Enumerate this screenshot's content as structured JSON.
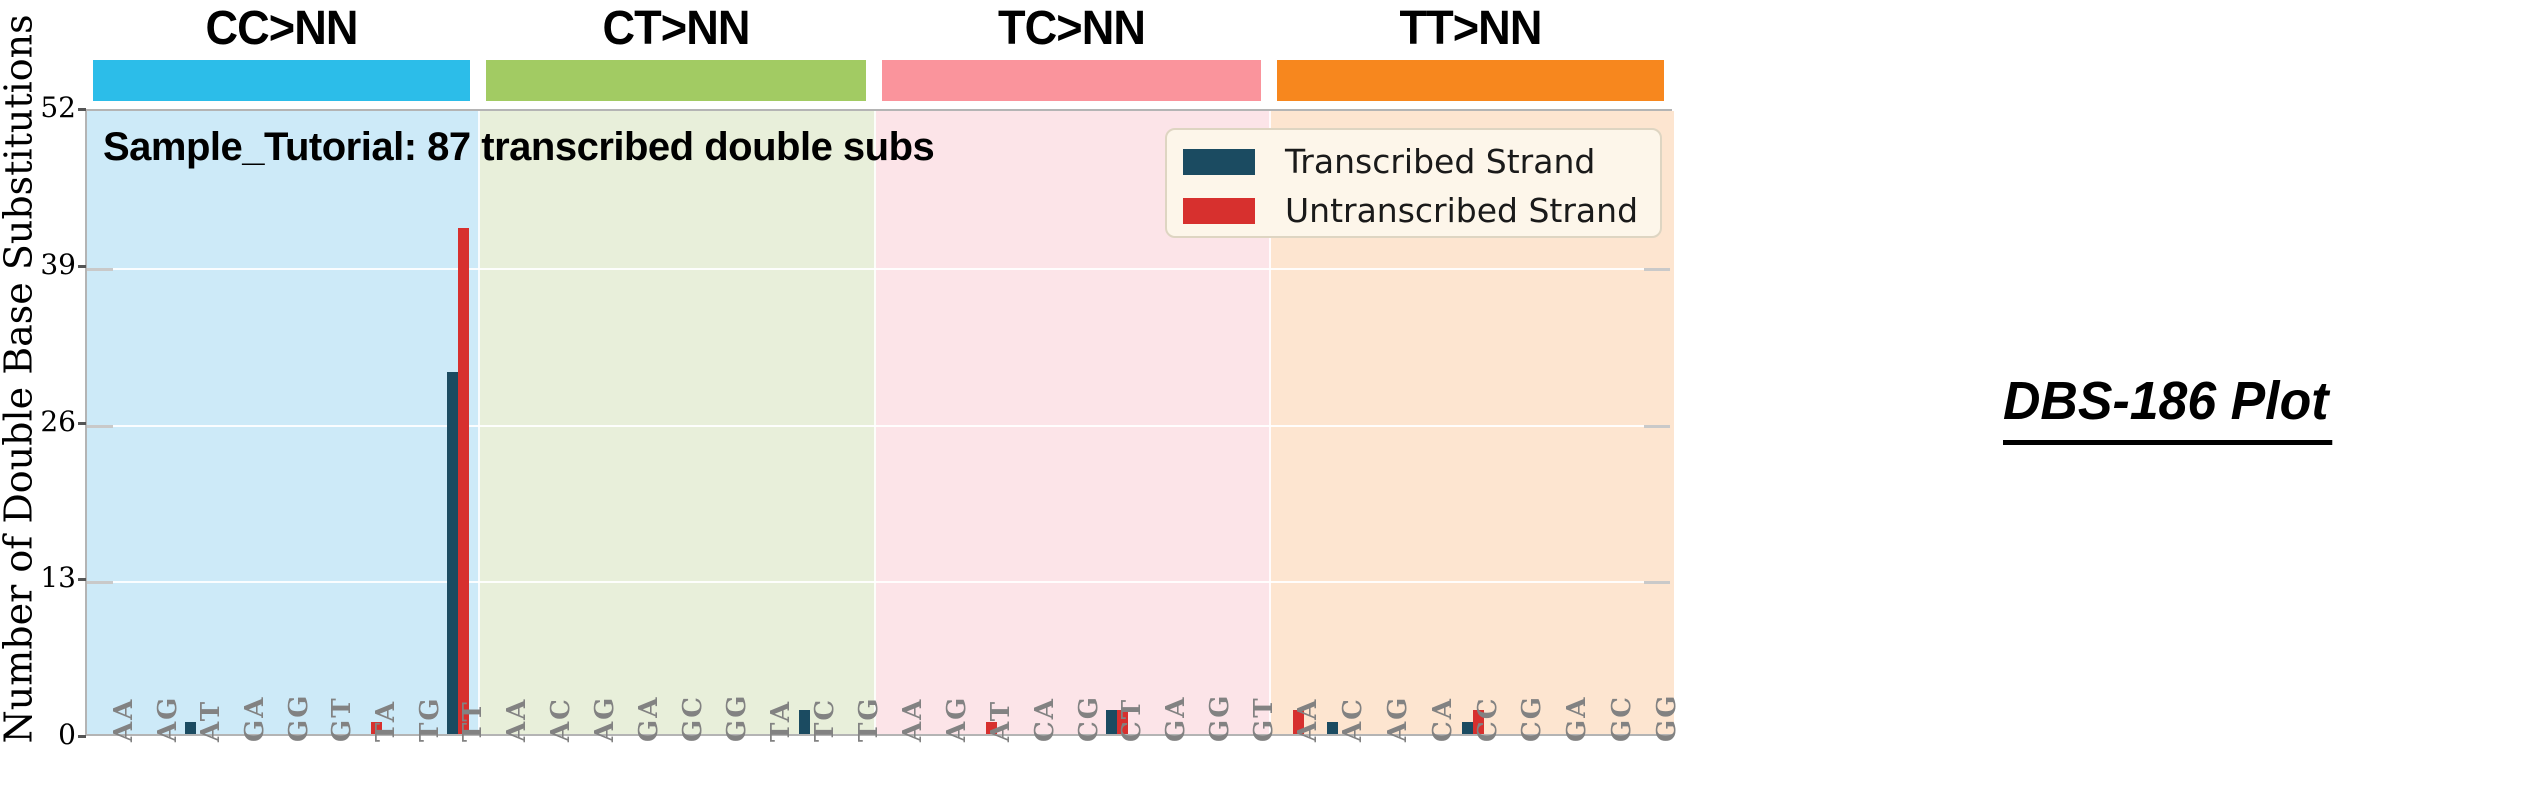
{
  "chart_data": {
    "type": "bar",
    "title": "Sample_Tutorial: 87 transcribed double subs",
    "ylabel": "Number of Double Base Substitutions",
    "annotation": "DBS-186 Plot",
    "ylim": [
      0,
      52
    ],
    "yticks": [
      0,
      13,
      26,
      39,
      52
    ],
    "grid": "horizontal gridlines at 13, 26, 39",
    "legend_position": "upper right inside plot",
    "legend": [
      {
        "label": "Transcribed Strand",
        "color": "#1b4b61"
      },
      {
        "label": "Untranscribed Strand",
        "color": "#d7302e"
      }
    ],
    "groups": [
      {
        "label": "CC>NN",
        "header_color": "#2cbde9",
        "bg_color": "#cdeaf8",
        "categories": [
          "AA",
          "AG",
          "AT",
          "GA",
          "GG",
          "GT",
          "TA",
          "TG",
          "TT"
        ],
        "series": [
          {
            "name": "Transcribed Strand",
            "values": [
              0,
              0,
              1,
              0,
              0,
              0,
              0,
              0,
              30
            ]
          },
          {
            "name": "Untranscribed Strand",
            "values": [
              0,
              0,
              0,
              0,
              0,
              0,
              1,
              0,
              42
            ]
          }
        ]
      },
      {
        "label": "CT>NN",
        "header_color": "#a2cb63",
        "bg_color": "#e8efda",
        "categories": [
          "AA",
          "AC",
          "AG",
          "GA",
          "GC",
          "GG",
          "TA",
          "TC",
          "TG"
        ],
        "series": [
          {
            "name": "Transcribed Strand",
            "values": [
              0,
              0,
              0,
              0,
              0,
              0,
              0,
              2,
              0
            ]
          },
          {
            "name": "Untranscribed Strand",
            "values": [
              0,
              0,
              0,
              0,
              0,
              0,
              0,
              0,
              0
            ]
          }
        ]
      },
      {
        "label": "TC>NN",
        "header_color": "#fa949c",
        "bg_color": "#fce4e8",
        "categories": [
          "AA",
          "AG",
          "AT",
          "CA",
          "CG",
          "CT",
          "GA",
          "GG",
          "GT"
        ],
        "series": [
          {
            "name": "Transcribed Strand",
            "values": [
              0,
              0,
              0,
              0,
              0,
              2,
              0,
              0,
              0
            ]
          },
          {
            "name": "Untranscribed Strand",
            "values": [
              0,
              0,
              1,
              0,
              0,
              2,
              0,
              0,
              0
            ]
          }
        ]
      },
      {
        "label": "TT>NN",
        "header_color": "#f7871e",
        "bg_color": "#fde5d0",
        "categories": [
          "AA",
          "AC",
          "AG",
          "CA",
          "CC",
          "CG",
          "GA",
          "GC",
          "GG"
        ],
        "series": [
          {
            "name": "Transcribed Strand",
            "values": [
              0,
              1,
              0,
              0,
              1,
              0,
              0,
              0,
              0
            ]
          },
          {
            "name": "Untranscribed Strand",
            "values": [
              2,
              0,
              0,
              0,
              2,
              0,
              0,
              0,
              0
            ]
          }
        ]
      }
    ]
  }
}
